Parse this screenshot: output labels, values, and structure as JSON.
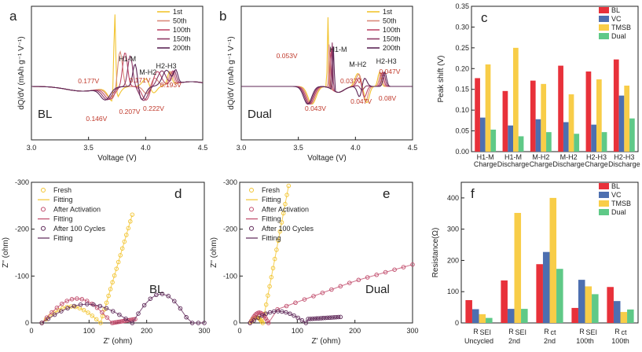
{
  "colors": {
    "c1": "#f2c430",
    "c2": "#d98a7a",
    "c3": "#c04a6a",
    "c4": "#8e3a66",
    "c5": "#5c2556",
    "BL": "#e8313a",
    "VC": "#4d6fb0",
    "TMSB": "#f8cd48",
    "Dual": "#5fc987",
    "ann": "#c0392b"
  },
  "chart_data": [
    {
      "id": "a",
      "panel_label": "a",
      "type": "line",
      "sample_label": "BL",
      "xlabel": "Voltage (V)",
      "ylabel": "dQ/dV (mAh g⁻¹ V⁻¹)",
      "xlim": [
        3.0,
        4.5
      ],
      "x_ticks": [
        "3.0",
        "3.5",
        "4.0",
        "4.5"
      ],
      "legend": [
        "1st",
        "50th",
        "100th",
        "150th",
        "200th"
      ],
      "peak_labels": [
        "H1-M",
        "M-H2",
        "H2-H3"
      ],
      "annotations": [
        "0.177V",
        "0.171V",
        "0.193V",
        "0.146V",
        "0.207V",
        "0.222V"
      ]
    },
    {
      "id": "b",
      "panel_label": "b",
      "type": "line",
      "sample_label": "Dual",
      "xlabel": "Voltage (V)",
      "ylabel": "dQ/dV (mAh g⁻¹ V⁻¹)",
      "xlim": [
        3.0,
        4.5
      ],
      "x_ticks": [
        "3.0",
        "3.5",
        "4.0",
        "4.5"
      ],
      "legend": [
        "1st",
        "50th",
        "100th",
        "150th",
        "200th"
      ],
      "peak_labels": [
        "H1-M",
        "M-H2",
        "H2-H3"
      ],
      "annotations": [
        "0.053V",
        "0.037V",
        "0.047V",
        "0.043V",
        "0.047V",
        "0.08V"
      ]
    },
    {
      "id": "c",
      "panel_label": "c",
      "type": "bar",
      "ylabel": "Peak shift (V)",
      "ylim": [
        0,
        0.35
      ],
      "y_ticks": [
        "0.00",
        "0.05",
        "0.10",
        "0.15",
        "0.20",
        "0.25",
        "0.30",
        "0.35"
      ],
      "categories": [
        [
          "H1-M",
          "Charge"
        ],
        [
          "H1-M",
          "Discharge"
        ],
        [
          "M-H2",
          "Charge"
        ],
        [
          "M-H2",
          "Discharge"
        ],
        [
          "H2-H3",
          "Charge"
        ],
        [
          "H2-H3",
          "Discharge"
        ]
      ],
      "series": [
        {
          "name": "BL",
          "values": [
            0.177,
            0.146,
            0.171,
            0.207,
            0.193,
            0.222
          ]
        },
        {
          "name": "VC",
          "values": [
            0.082,
            0.063,
            0.078,
            0.071,
            0.065,
            0.135
          ]
        },
        {
          "name": "TMSB",
          "values": [
            0.21,
            0.25,
            0.163,
            0.138,
            0.174,
            0.159
          ]
        },
        {
          "name": "Dual",
          "values": [
            0.053,
            0.037,
            0.047,
            0.043,
            0.047,
            0.08
          ]
        }
      ]
    },
    {
      "id": "d",
      "panel_label": "d",
      "type": "scatter",
      "sample_label": "BL",
      "xlabel": "Z' (ohm)",
      "ylabel": "Z'' (ohm)",
      "xlim": [
        0,
        300
      ],
      "ylim": [
        -300,
        0
      ],
      "x_ticks": [
        "0",
        "100",
        "200",
        "300"
      ],
      "y_ticks": [
        "-300",
        "-200",
        "-100",
        "0"
      ],
      "legend": [
        "Fresh",
        "Fitting",
        "After Activation",
        "Fitting",
        "After 100 Cycles",
        "Fitting"
      ]
    },
    {
      "id": "e",
      "panel_label": "e",
      "type": "scatter",
      "sample_label": "Dual",
      "xlabel": "Z' (ohm)",
      "ylabel": "Z'' (ohm)",
      "xlim": [
        0,
        300
      ],
      "ylim": [
        -300,
        0
      ],
      "x_ticks": [
        "0",
        "100",
        "200",
        "300"
      ],
      "y_ticks": [
        "-300",
        "-200",
        "-100",
        "0"
      ],
      "legend": [
        "Fresh",
        "Fitting",
        "After Activation",
        "Fitting",
        "After 100 Cycles",
        "Fitting"
      ]
    },
    {
      "id": "f",
      "panel_label": "f",
      "type": "bar",
      "ylabel": "Resistance(Ω)",
      "ylim": [
        0,
        450
      ],
      "y_ticks": [
        "0",
        "100",
        "200",
        "300",
        "400"
      ],
      "categories": [
        [
          "R",
          "SEI",
          "Uncycled"
        ],
        [
          "R",
          "SEI",
          "2nd"
        ],
        [
          "R",
          "ct",
          "2nd"
        ],
        [
          "R",
          "SEI",
          "100th"
        ],
        [
          "R",
          "ct",
          "100th"
        ]
      ],
      "series": [
        {
          "name": "BL",
          "values": [
            73,
            136,
            188,
            48,
            115
          ]
        },
        {
          "name": "VC",
          "values": [
            44,
            45,
            227,
            138,
            70
          ]
        },
        {
          "name": "TMSB",
          "values": [
            28,
            352,
            400,
            117,
            35
          ]
        },
        {
          "name": "Dual",
          "values": [
            16,
            45,
            173,
            92,
            43
          ]
        }
      ]
    }
  ]
}
